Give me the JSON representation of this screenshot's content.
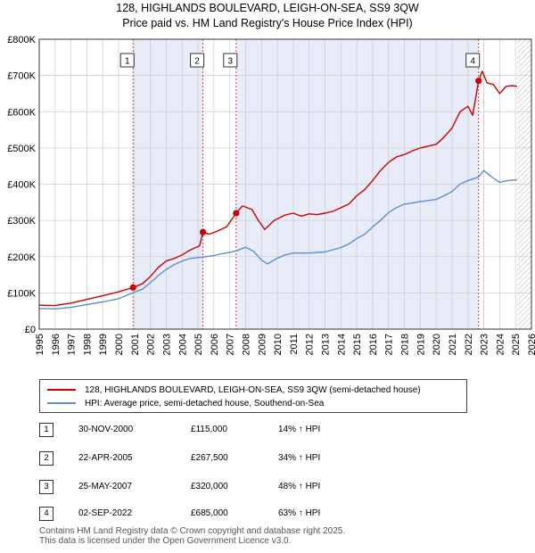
{
  "title": {
    "line1": "128, HIGHLANDS BOULEVARD, LEIGH-ON-SEA, SS9 3QW",
    "line2": "Price paid vs. HM Land Registry's House Price Index (HPI)"
  },
  "colors": {
    "price_line": "#cc0000",
    "hpi_line": "#5b8fd1",
    "shade": "#e8ecf8",
    "grid": "#cfcfcf",
    "marker_line": "#d04040"
  },
  "chart_data": {
    "type": "line",
    "title": "Price paid vs. HM Land Registry's House Price Index (HPI)",
    "xlabel": "",
    "ylabel": "",
    "xlim": [
      1995,
      2026
    ],
    "ylim": [
      0,
      800000
    ],
    "x_ticks": [
      1995,
      1996,
      1997,
      1998,
      1999,
      2000,
      2001,
      2002,
      2003,
      2004,
      2005,
      2006,
      2007,
      2008,
      2009,
      2010,
      2011,
      2012,
      2013,
      2014,
      2015,
      2016,
      2017,
      2018,
      2019,
      2020,
      2021,
      2022,
      2023,
      2024,
      2025,
      2026
    ],
    "y_ticks": [
      {
        "value": 0,
        "label": "£0"
      },
      {
        "value": 100000,
        "label": "£100K"
      },
      {
        "value": 200000,
        "label": "£200K"
      },
      {
        "value": 300000,
        "label": "£300K"
      },
      {
        "value": 400000,
        "label": "£400K"
      },
      {
        "value": 500000,
        "label": "£500K"
      },
      {
        "value": 600000,
        "label": "£600K"
      },
      {
        "value": 700000,
        "label": "£700K"
      },
      {
        "value": 800000,
        "label": "£800K"
      }
    ],
    "grid": true,
    "shaded_ranges": [
      [
        2000.91,
        2005.31
      ],
      [
        2007.4,
        2022.67
      ]
    ],
    "future_hatch_start": 2025.1,
    "series": [
      {
        "name": "128, HIGHLANDS BOULEVARD, LEIGH-ON-SEA, SS9 3QW (semi-detached house)",
        "points": [
          [
            1995,
            66000
          ],
          [
            1996,
            65000
          ],
          [
            1997,
            72000
          ],
          [
            1998,
            82000
          ],
          [
            1999,
            92000
          ],
          [
            2000,
            103000
          ],
          [
            2000.91,
            115000
          ],
          [
            2001.5,
            125000
          ],
          [
            2002,
            145000
          ],
          [
            2002.5,
            170000
          ],
          [
            2003,
            188000
          ],
          [
            2003.5,
            195000
          ],
          [
            2004,
            205000
          ],
          [
            2004.5,
            218000
          ],
          [
            2005.1,
            230000
          ],
          [
            2005.31,
            267500
          ],
          [
            2005.7,
            262000
          ],
          [
            2006.2,
            270000
          ],
          [
            2006.8,
            282000
          ],
          [
            2007.4,
            320000
          ],
          [
            2007.8,
            340000
          ],
          [
            2008.4,
            330000
          ],
          [
            2008.8,
            300000
          ],
          [
            2009.2,
            275000
          ],
          [
            2009.8,
            300000
          ],
          [
            2010.5,
            315000
          ],
          [
            2011,
            320000
          ],
          [
            2011.5,
            312000
          ],
          [
            2012,
            318000
          ],
          [
            2012.5,
            316000
          ],
          [
            2013,
            320000
          ],
          [
            2013.5,
            325000
          ],
          [
            2014,
            335000
          ],
          [
            2014.5,
            345000
          ],
          [
            2015,
            368000
          ],
          [
            2015.5,
            385000
          ],
          [
            2016,
            410000
          ],
          [
            2016.5,
            438000
          ],
          [
            2017,
            460000
          ],
          [
            2017.5,
            475000
          ],
          [
            2018,
            482000
          ],
          [
            2018.5,
            492000
          ],
          [
            2019,
            500000
          ],
          [
            2019.5,
            505000
          ],
          [
            2020,
            510000
          ],
          [
            2020.5,
            530000
          ],
          [
            2021,
            555000
          ],
          [
            2021.5,
            600000
          ],
          [
            2022,
            615000
          ],
          [
            2022.3,
            590000
          ],
          [
            2022.67,
            685000
          ],
          [
            2022.9,
            712000
          ],
          [
            2023.2,
            680000
          ],
          [
            2023.6,
            675000
          ],
          [
            2024,
            650000
          ],
          [
            2024.4,
            670000
          ],
          [
            2024.8,
            672000
          ],
          [
            2025.1,
            670000
          ]
        ]
      },
      {
        "name": "HPI: Average price, semi-detached house, Southend-on-Sea",
        "points": [
          [
            1995,
            57000
          ],
          [
            1996,
            56000
          ],
          [
            1997,
            60000
          ],
          [
            1998,
            68000
          ],
          [
            1999,
            75000
          ],
          [
            2000,
            84000
          ],
          [
            2000.91,
            101000
          ],
          [
            2001.5,
            110000
          ],
          [
            2002,
            128000
          ],
          [
            2002.5,
            148000
          ],
          [
            2003,
            165000
          ],
          [
            2003.5,
            178000
          ],
          [
            2004,
            188000
          ],
          [
            2004.5,
            195000
          ],
          [
            2005.31,
            199000
          ],
          [
            2006,
            203000
          ],
          [
            2006.5,
            208000
          ],
          [
            2007,
            212000
          ],
          [
            2007.4,
            216000
          ],
          [
            2008,
            226000
          ],
          [
            2008.5,
            215000
          ],
          [
            2009,
            190000
          ],
          [
            2009.4,
            180000
          ],
          [
            2010,
            196000
          ],
          [
            2010.5,
            205000
          ],
          [
            2011,
            210000
          ],
          [
            2012,
            210000
          ],
          [
            2013,
            213000
          ],
          [
            2014,
            225000
          ],
          [
            2014.5,
            235000
          ],
          [
            2015,
            250000
          ],
          [
            2015.5,
            262000
          ],
          [
            2016,
            282000
          ],
          [
            2016.5,
            300000
          ],
          [
            2017,
            322000
          ],
          [
            2017.5,
            335000
          ],
          [
            2018,
            345000
          ],
          [
            2018.5,
            348000
          ],
          [
            2019,
            352000
          ],
          [
            2019.5,
            355000
          ],
          [
            2020,
            358000
          ],
          [
            2020.5,
            368000
          ],
          [
            2021,
            380000
          ],
          [
            2021.5,
            400000
          ],
          [
            2022,
            410000
          ],
          [
            2022.67,
            420000
          ],
          [
            2023,
            438000
          ],
          [
            2023.5,
            420000
          ],
          [
            2024,
            405000
          ],
          [
            2024.5,
            410000
          ],
          [
            2025.1,
            412000
          ]
        ]
      }
    ],
    "sale_markers": [
      {
        "id": "1",
        "x": 2000.91,
        "y": 115000
      },
      {
        "id": "2",
        "x": 2005.31,
        "y": 267500
      },
      {
        "id": "3",
        "x": 2007.4,
        "y": 320000
      },
      {
        "id": "4",
        "x": 2022.67,
        "y": 685000
      }
    ]
  },
  "legend": {
    "items": [
      {
        "label": "128, HIGHLANDS BOULEVARD, LEIGH-ON-SEA, SS9 3QW (semi-detached house)",
        "color": "#cc0000"
      },
      {
        "label": "HPI: Average price, semi-detached house, Southend-on-Sea",
        "color": "#5b8fd1"
      }
    ]
  },
  "sales": [
    {
      "num": "1",
      "date": "30-NOV-2000",
      "price": "£115,000",
      "hpi": "14% ↑ HPI"
    },
    {
      "num": "2",
      "date": "22-APR-2005",
      "price": "£267,500",
      "hpi": "34% ↑ HPI"
    },
    {
      "num": "3",
      "date": "25-MAY-2007",
      "price": "£320,000",
      "hpi": "48% ↑ HPI"
    },
    {
      "num": "4",
      "date": "02-SEP-2022",
      "price": "£685,000",
      "hpi": "63% ↑ HPI"
    }
  ],
  "footer": {
    "line1": "Contains HM Land Registry data © Crown copyright and database right 2025.",
    "line2": "This data is licensed under the Open Government Licence v3.0."
  }
}
